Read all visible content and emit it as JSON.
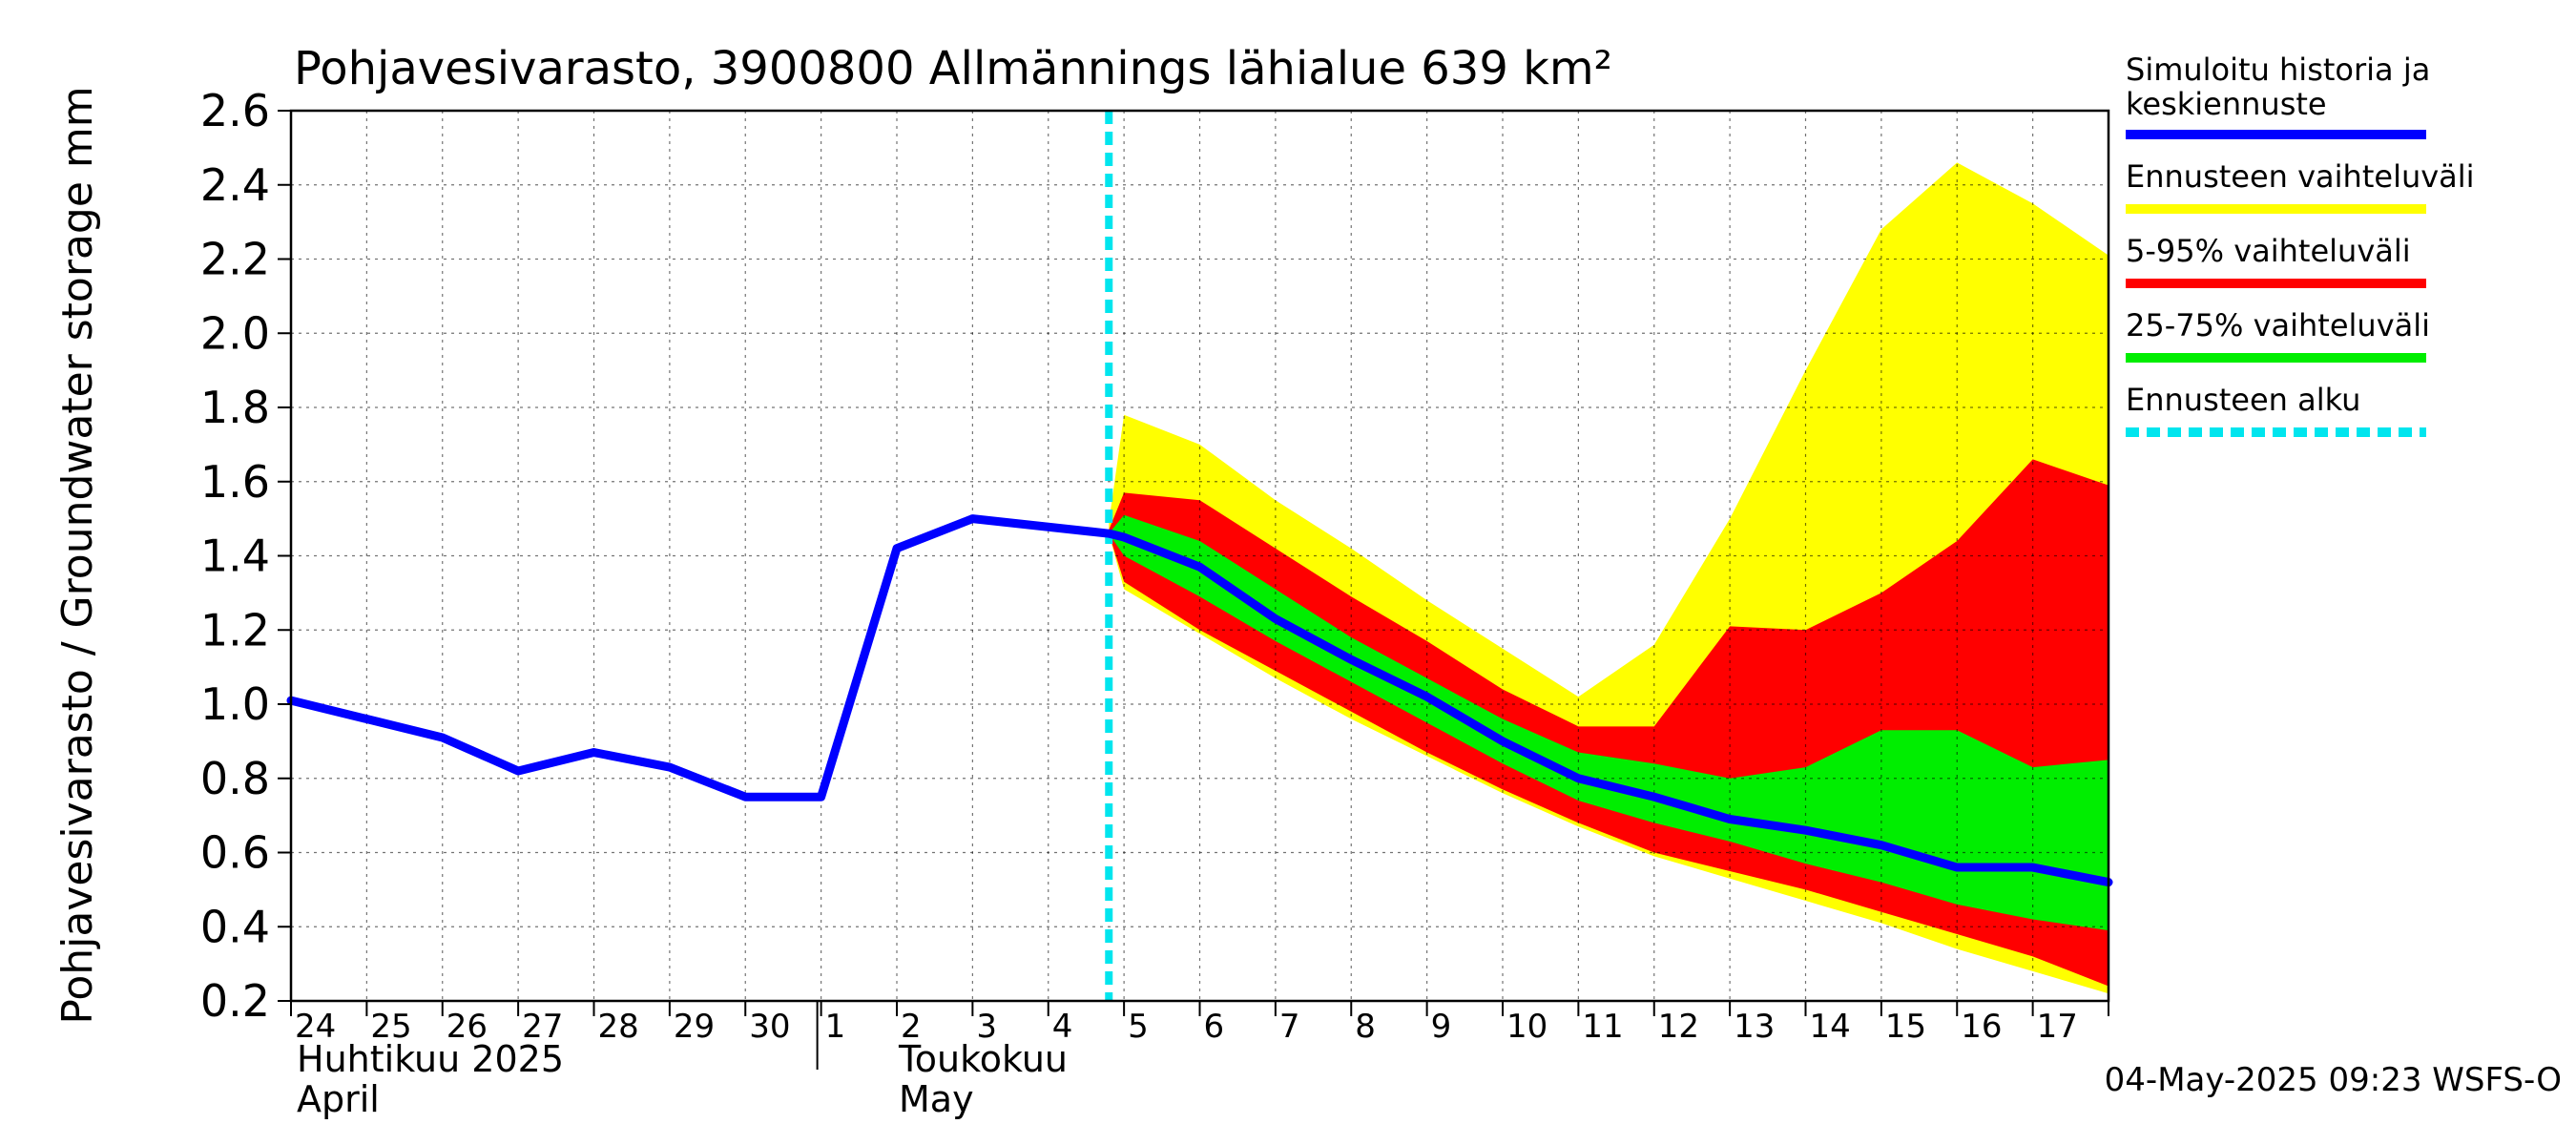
{
  "chart_data": {
    "type": "area",
    "title": "Pohjavesivarasto, 3900800 Allmännings lähialue 639 km²",
    "ylabel": "Pohjavesivarasto / Groundwater storage   mm",
    "ylim": [
      0.2,
      2.6
    ],
    "yticks": [
      "0.2",
      "0.4",
      "0.6",
      "0.8",
      "1.0",
      "1.2",
      "1.4",
      "1.6",
      "1.8",
      "2.0",
      "2.2",
      "2.4",
      "2.6"
    ],
    "grid": true,
    "x_day_labels": [
      "24",
      "25",
      "26",
      "27",
      "28",
      "29",
      "30",
      "1",
      "2",
      "3",
      "4",
      "5",
      "6",
      "7",
      "8",
      "9",
      "10",
      "11",
      "12",
      "13",
      "14",
      "15",
      "16",
      "17"
    ],
    "month_labels": [
      {
        "fi": "Huhtikuu  2025",
        "en": "April"
      },
      {
        "fi": "Toukokuu",
        "en": "May"
      }
    ],
    "forecast_start_day": 10.8,
    "series": [
      {
        "name": "Simuloitu historia ja keskiennuste",
        "color": "#0000ff",
        "x": [
          0,
          1,
          2,
          3,
          4,
          5,
          6,
          7,
          8,
          9,
          10.8,
          11,
          12,
          13,
          14,
          15,
          16,
          17,
          18,
          19,
          20,
          21,
          22,
          23,
          24
        ],
        "values": [
          1.01,
          0.96,
          0.91,
          0.82,
          0.87,
          0.83,
          0.75,
          0.75,
          1.42,
          1.5,
          1.46,
          1.45,
          1.37,
          1.23,
          1.12,
          1.02,
          0.9,
          0.8,
          0.75,
          0.69,
          0.66,
          0.62,
          0.56,
          0.56,
          0.52
        ]
      },
      {
        "name": "Ennusteen vaihteluväli",
        "color": "#ffff00",
        "x": [
          10.8,
          11,
          12,
          13,
          14,
          15,
          16,
          17,
          18,
          19,
          20,
          21,
          22,
          23,
          24
        ],
        "upper": [
          1.49,
          1.78,
          1.7,
          1.55,
          1.42,
          1.28,
          1.15,
          1.02,
          1.16,
          1.5,
          1.9,
          2.28,
          2.46,
          2.35,
          2.21
        ],
        "lower": [
          1.46,
          1.31,
          1.19,
          1.07,
          0.96,
          0.86,
          0.76,
          0.67,
          0.59,
          0.53,
          0.47,
          0.41,
          0.34,
          0.28,
          0.22
        ]
      },
      {
        "name": "5-95% vaihteluväli",
        "color": "#ff0000",
        "x": [
          10.8,
          11,
          12,
          13,
          14,
          15,
          16,
          17,
          18,
          19,
          20,
          21,
          22,
          23,
          24
        ],
        "upper": [
          1.47,
          1.57,
          1.55,
          1.42,
          1.29,
          1.17,
          1.04,
          0.94,
          0.94,
          1.21,
          1.2,
          1.3,
          1.44,
          1.66,
          1.59
        ],
        "lower": [
          1.46,
          1.33,
          1.2,
          1.09,
          0.98,
          0.87,
          0.77,
          0.68,
          0.6,
          0.55,
          0.5,
          0.44,
          0.38,
          0.32,
          0.24
        ]
      },
      {
        "name": "25-75% vaihteluväli",
        "color": "#00ee00",
        "x": [
          10.8,
          11,
          12,
          13,
          14,
          15,
          16,
          17,
          18,
          19,
          20,
          21,
          22,
          23,
          24
        ],
        "upper": [
          1.46,
          1.51,
          1.44,
          1.31,
          1.18,
          1.07,
          0.96,
          0.87,
          0.84,
          0.8,
          0.83,
          0.93,
          0.93,
          0.83,
          0.85
        ],
        "lower": [
          1.46,
          1.4,
          1.29,
          1.17,
          1.06,
          0.95,
          0.84,
          0.74,
          0.68,
          0.63,
          0.57,
          0.52,
          0.46,
          0.42,
          0.39
        ]
      },
      {
        "name": "Ennusteen alku",
        "color": "#00e5ee"
      }
    ],
    "legend_position": "right",
    "footer": "04-May-2025 09:23 WSFS-O"
  }
}
